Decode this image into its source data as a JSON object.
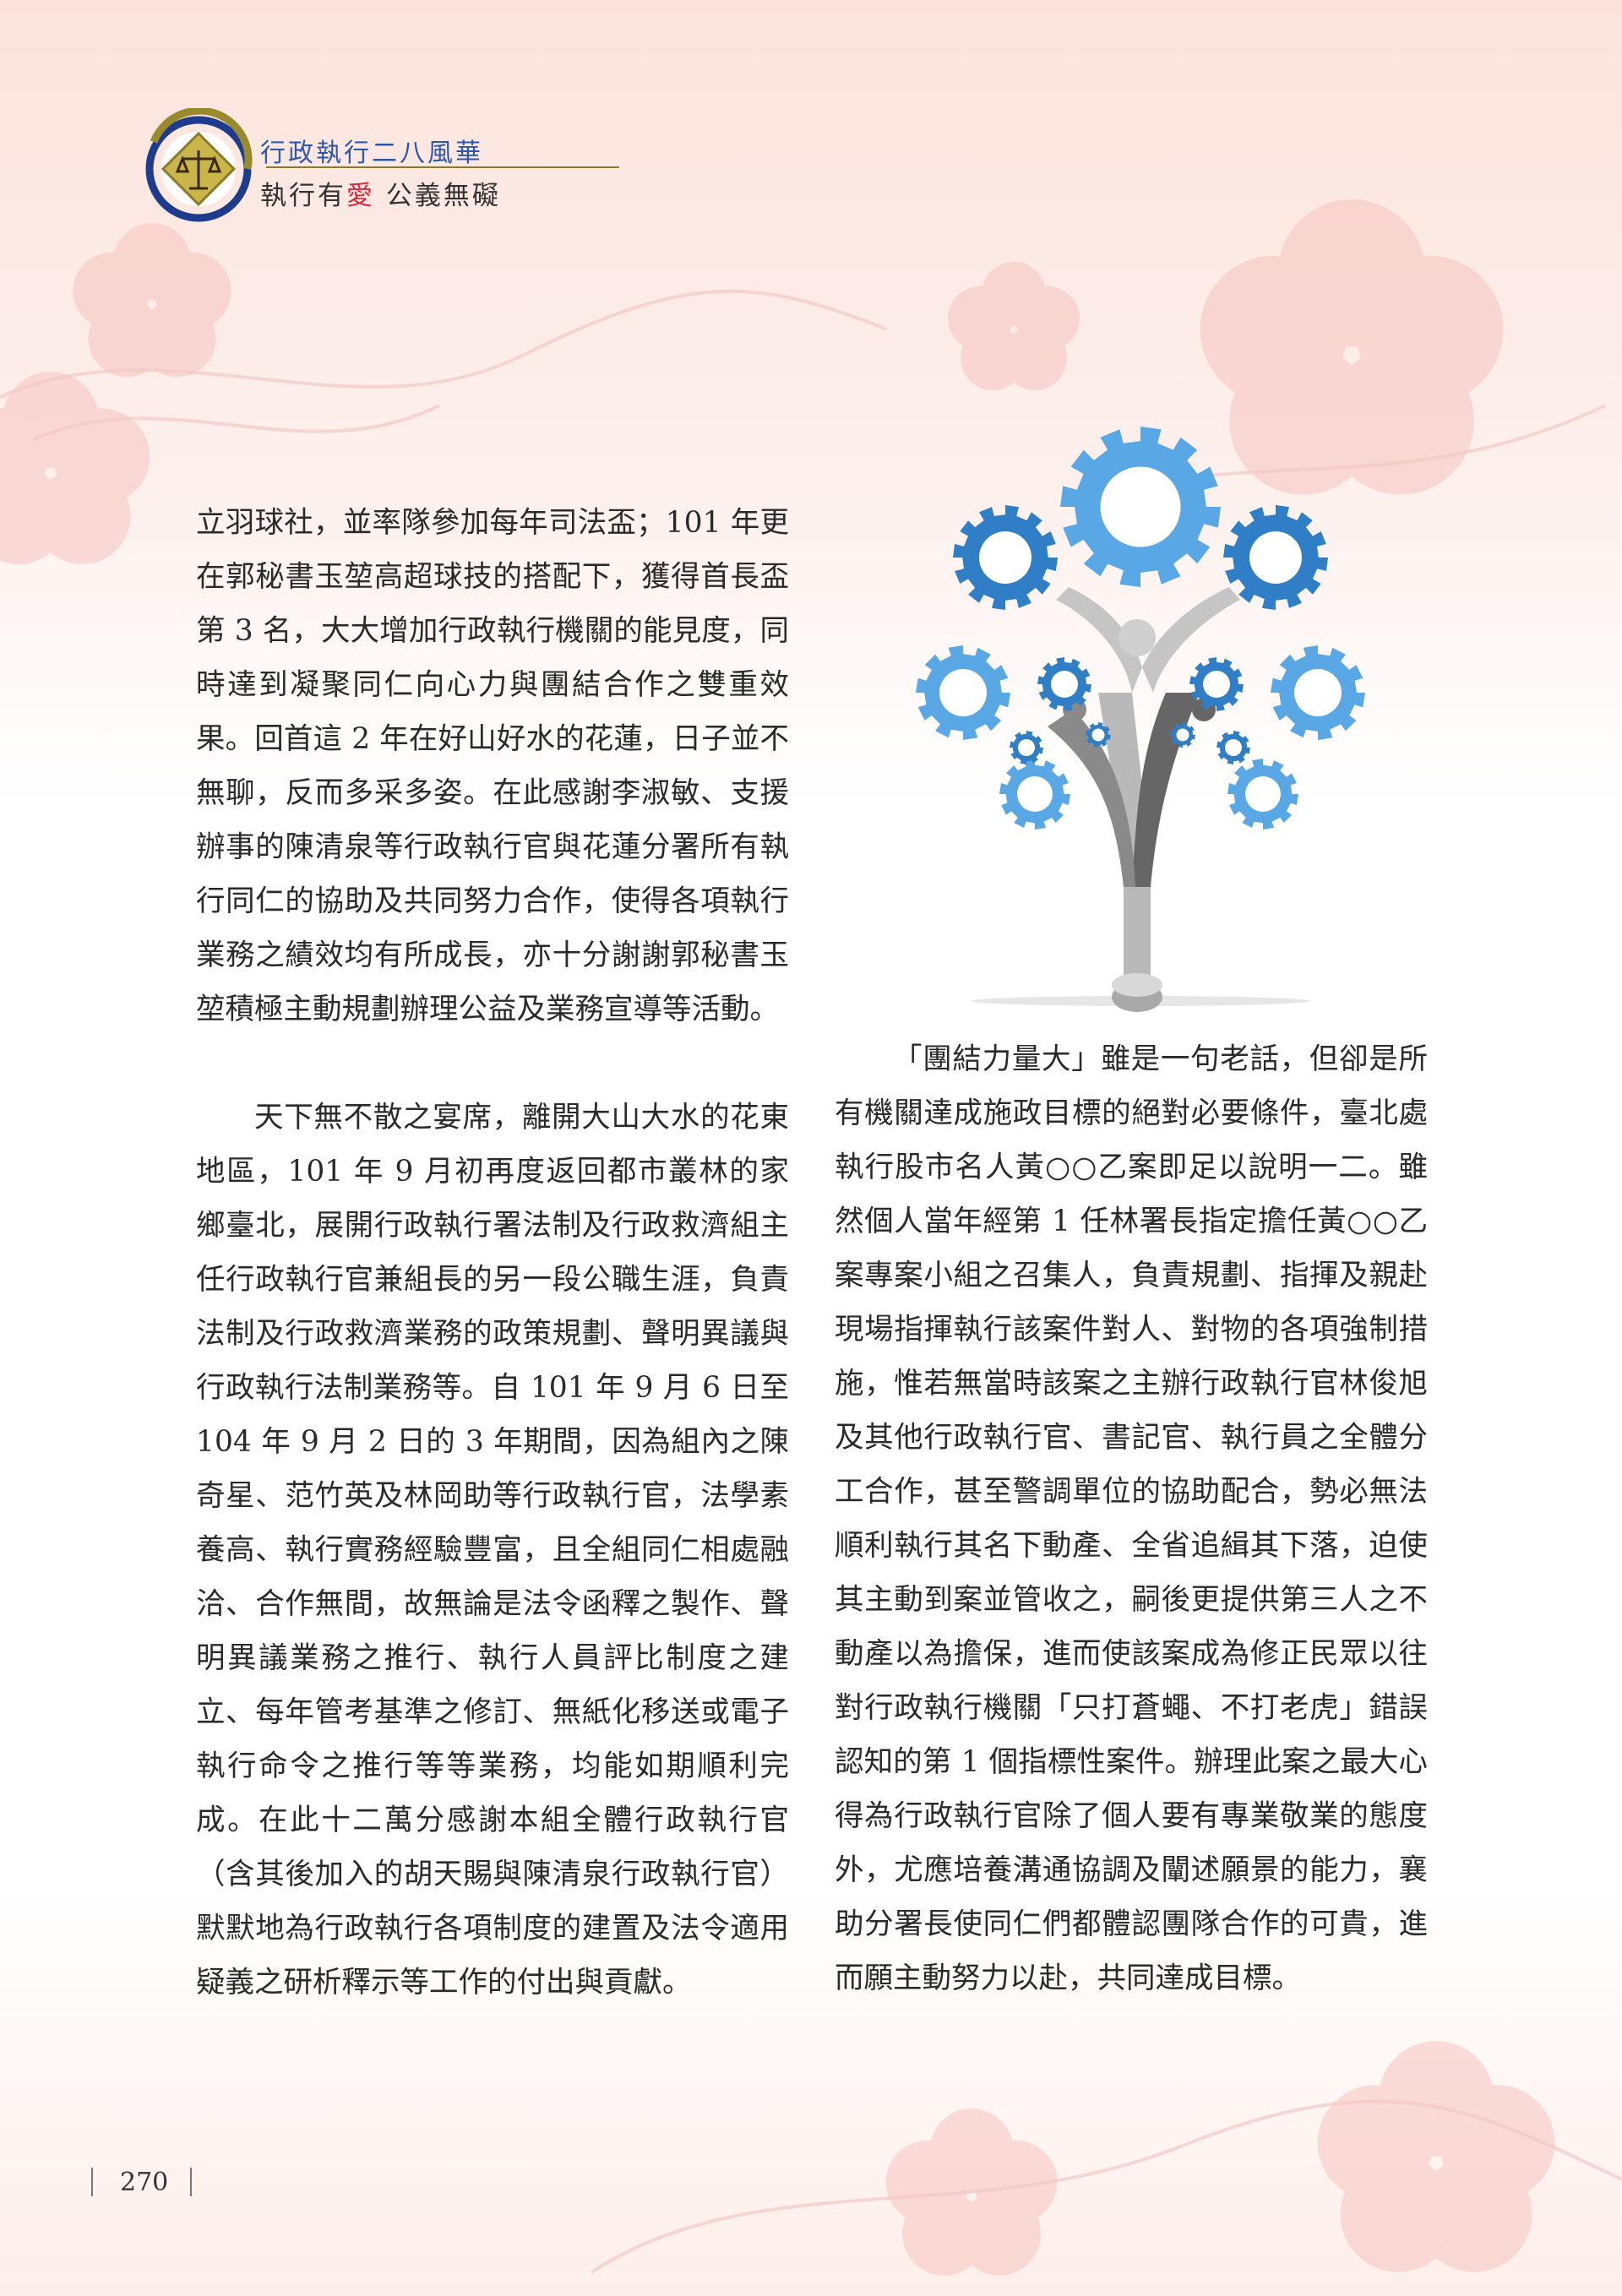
{
  "header": {
    "series_title": "行政執行二八風華",
    "slogan_part1": "執行有",
    "slogan_love": "愛",
    "slogan_part2": "公義無礙"
  },
  "left_column": {
    "paragraph_1": "立羽球社，並率隊參加每年司法盃；101 年更在郭秘書玉堃高超球技的搭配下，獲得首長盃第 3 名，大大增加行政執行機關的能見度，同時達到凝聚同仁向心力與團結合作之雙重效果。回首這 2 年在好山好水的花蓮，日子並不無聊，反而多采多姿。在此感謝李淑敏、支援辦事的陳清泉等行政執行官與花蓮分署所有執行同仁的協助及共同努力合作，使得各項執行業務之績效均有所成長，亦十分謝謝郭秘書玉堃積極主動規劃辦理公益及業務宣導等活動。",
    "paragraph_2": "天下無不散之宴席，離開大山大水的花東地區，101 年 9 月初再度返回都市叢林的家鄉臺北，展開行政執行署法制及行政救濟組主任行政執行官兼組長的另一段公職生涯，負責法制及行政救濟業務的政策規劃、聲明異議與行政執行法制業務等。自 101 年 9 月 6 日至 104 年 9 月 2 日的 3 年期間，因為組內之陳奇星、范竹英及林岡助等行政執行官，法學素養高、執行實務經驗豐富，且全組同仁相處融洽、合作無間，故無論是法令函釋之製作、聲明異議業務之推行、執行人員評比制度之建立、每年管考基準之修訂、無紙化移送或電子執行命令之推行等等業務，均能如期順利完成。在此十二萬分感謝本組全體行政執行官（含其後加入的胡天賜與陳清泉行政執行官）默默地為行政執行各項制度的建置及法令適用疑義之研析釋示等工作的付出與貢獻。"
  },
  "right_column": {
    "paragraph_1": "「團結力量大」雖是一句老話，但卻是所有機關達成施政目標的絕對必要條件，臺北處執行股市名人黃○○乙案即足以說明一二。雖然個人當年經第 1 任林署長指定擔任黃○○乙案專案小組之召集人，負責規劃、指揮及親赴現場指揮執行該案件對人、對物的各項強制措施，惟若無當時該案之主辦行政執行官林俊旭及其他行政執行官、書記官、執行員之全體分工合作，甚至警調單位的協助配合，勢必無法順利執行其名下動產、全省追緝其下落，迫使其主動到案並管收之，嗣後更提供第三人之不動產以為擔保，進而使該案成為修正民眾以往對行政執行機關「只打蒼蠅、不打老虎」錯誤認知的第 1 個指標性案件。辦理此案之最大心得為行政執行官除了個人要有專業敬業的態度外，尤應培養溝通協調及闡述願景的能力，襄助分署長使同仁們都體認團隊合作的可貴，進而願主動努力以赴，共同達成目標。"
  },
  "footer": {
    "page_number": "270"
  },
  "colors": {
    "title_blue": "#2f58a8",
    "love_red": "#d8263a",
    "gear_light": "#5aa7e6",
    "gear_dark": "#2f7ec6",
    "flower_pink": "#f7c7c4"
  }
}
